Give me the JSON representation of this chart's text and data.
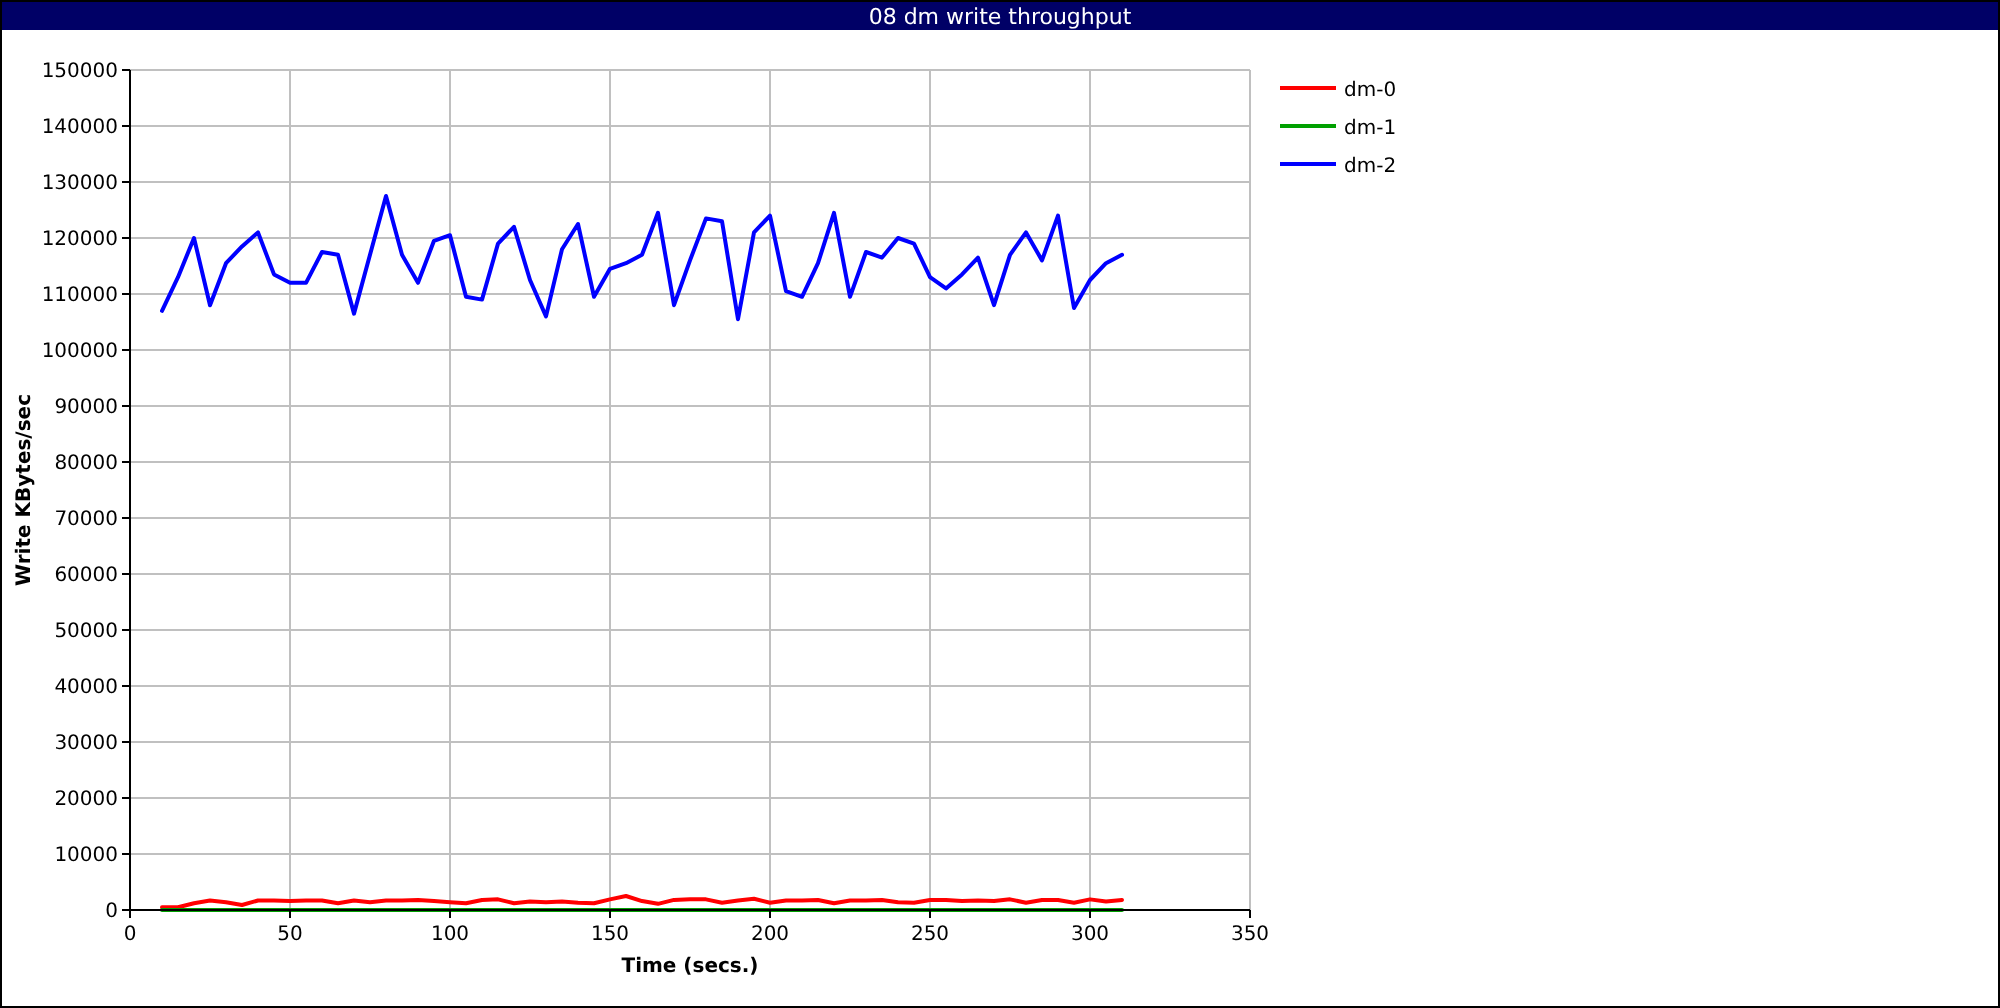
{
  "chart_data": {
    "type": "line",
    "title": "08 dm write throughput",
    "xlabel": "Time (secs.)",
    "ylabel": "Write KBytes/sec",
    "x": [
      10,
      15,
      20,
      25,
      30,
      35,
      40,
      45,
      50,
      55,
      60,
      65,
      70,
      75,
      80,
      85,
      90,
      95,
      100,
      105,
      110,
      115,
      120,
      125,
      130,
      135,
      140,
      145,
      150,
      155,
      160,
      165,
      170,
      175,
      180,
      185,
      190,
      195,
      200,
      205,
      210,
      215,
      220,
      225,
      230,
      235,
      240,
      245,
      250,
      255,
      260,
      265,
      270,
      275,
      280,
      285,
      290,
      295,
      300,
      305,
      310
    ],
    "series": [
      {
        "name": "dm-0",
        "color": "#ff0000",
        "values": [
          500,
          500,
          1200,
          1700,
          1400,
          900,
          1700,
          1700,
          1600,
          1700,
          1700,
          1200,
          1700,
          1400,
          1700,
          1700,
          1800,
          1600,
          1400,
          1200,
          1800,
          1900,
          1200,
          1500,
          1400,
          1500,
          1300,
          1200,
          1900,
          2500,
          1600,
          1100,
          1800,
          1900,
          1900,
          1300,
          1700,
          2000,
          1300,
          1700,
          1700,
          1800,
          1200,
          1700,
          1700,
          1800,
          1400,
          1300,
          1800,
          1800,
          1600,
          1700,
          1600,
          1900,
          1300,
          1800,
          1800,
          1300,
          1900,
          1500,
          1800
        ]
      },
      {
        "name": "dm-1",
        "color": "#00a000",
        "values": [
          0,
          0,
          0,
          0,
          0,
          0,
          0,
          0,
          0,
          0,
          0,
          0,
          0,
          0,
          0,
          0,
          0,
          0,
          0,
          0,
          0,
          0,
          0,
          0,
          0,
          0,
          0,
          0,
          0,
          0,
          0,
          0,
          0,
          0,
          0,
          0,
          0,
          0,
          0,
          0,
          0,
          0,
          0,
          0,
          0,
          0,
          0,
          0,
          0,
          0,
          0,
          0,
          0,
          0,
          0,
          0,
          0,
          0,
          0,
          0,
          0
        ]
      },
      {
        "name": "dm-2",
        "color": "#0000ff",
        "values": [
          107000,
          113000,
          120000,
          108000,
          115500,
          118500,
          121000,
          113500,
          112000,
          112000,
          117500,
          117000,
          106500,
          117000,
          127500,
          117000,
          112000,
          119500,
          120500,
          109500,
          109000,
          119000,
          122000,
          112500,
          106000,
          118000,
          122500,
          109500,
          114500,
          115500,
          117000,
          124500,
          108000,
          116000,
          123500,
          123000,
          105500,
          121000,
          124000,
          110500,
          109500,
          115500,
          124500,
          109500,
          117500,
          116500,
          120000,
          119000,
          113000,
          111000,
          113500,
          116500,
          108000,
          117000,
          121000,
          116000,
          124000,
          107500,
          112500,
          115500,
          117000
        ]
      }
    ],
    "xlim": [
      0,
      350
    ],
    "xticks": [
      0,
      50,
      100,
      150,
      200,
      250,
      300,
      350
    ],
    "ylim": [
      0,
      150000
    ],
    "yticks": [
      0,
      10000,
      20000,
      30000,
      40000,
      50000,
      60000,
      70000,
      80000,
      90000,
      100000,
      110000,
      120000,
      130000,
      140000,
      150000
    ],
    "grid": true,
    "legend": "top right",
    "marker": "none",
    "line_style": "solid"
  }
}
